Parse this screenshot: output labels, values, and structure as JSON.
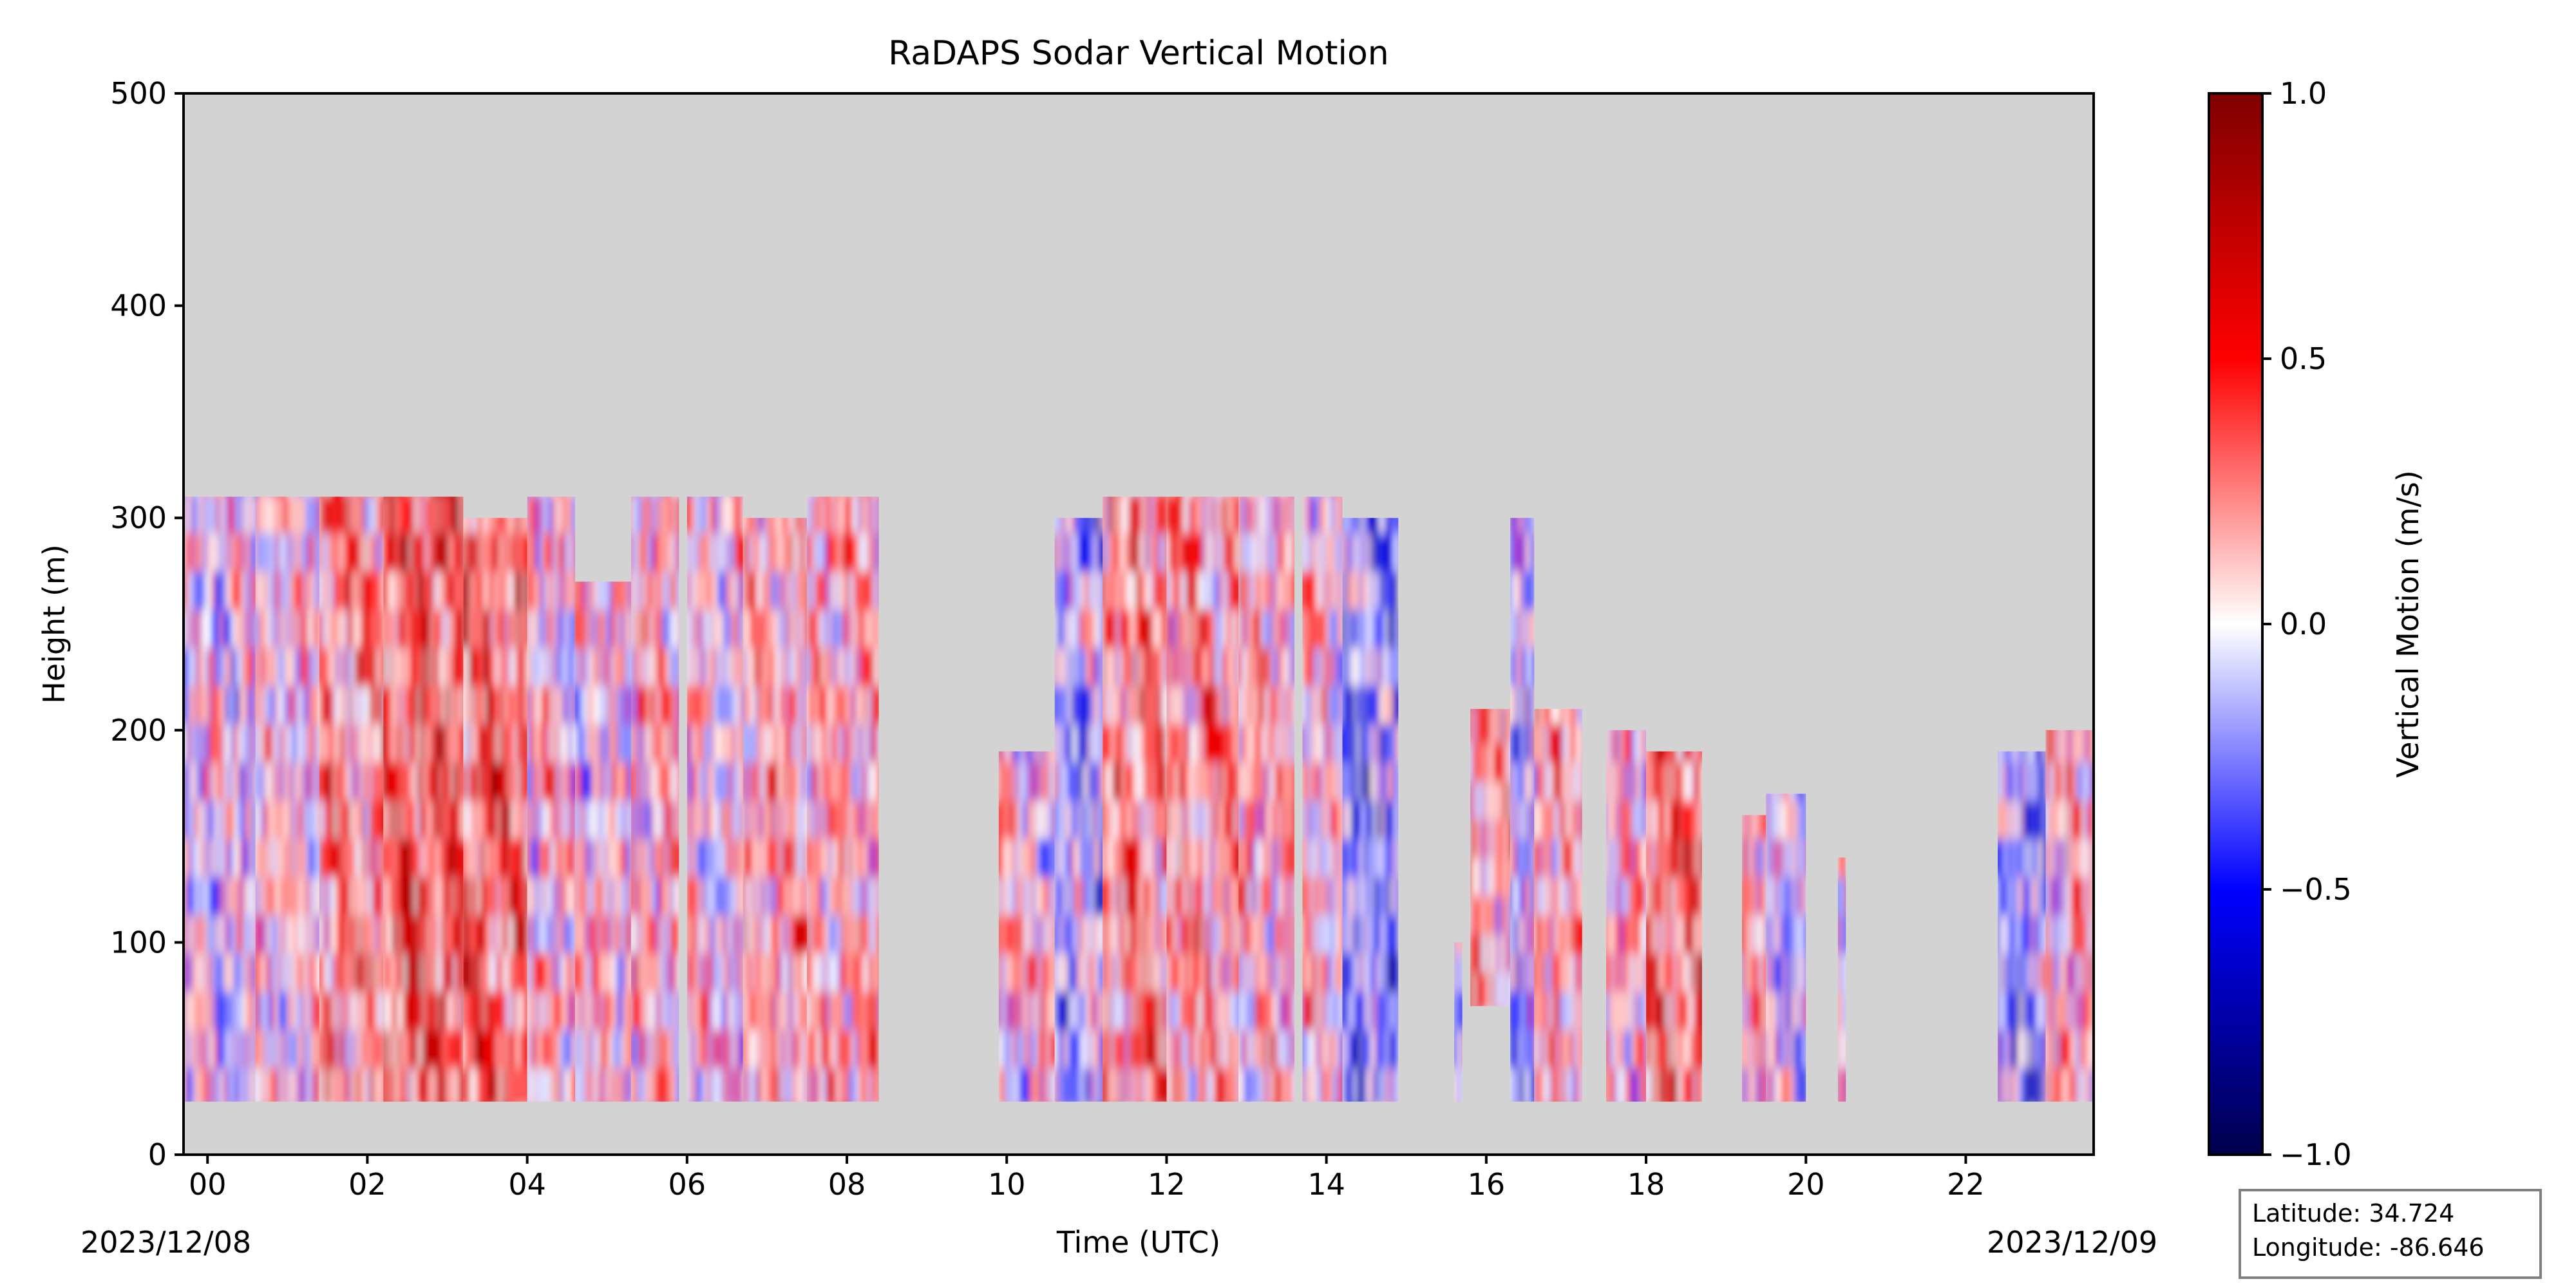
{
  "chart_data": {
    "type": "heatmap",
    "title": "RaDAPS Sodar Vertical Motion",
    "xlabel": "Time (UTC)",
    "ylabel": "Height (m)",
    "xlim": [
      -0.3,
      23.6
    ],
    "ylim": [
      0,
      500
    ],
    "x_ticks": [
      "00",
      "02",
      "04",
      "06",
      "08",
      "10",
      "12",
      "14",
      "16",
      "18",
      "20",
      "22"
    ],
    "x_tick_values": [
      0,
      2,
      4,
      6,
      8,
      10,
      12,
      14,
      16,
      18,
      20,
      22
    ],
    "y_ticks": [
      "0",
      "100",
      "200",
      "300",
      "400",
      "500"
    ],
    "y_tick_values": [
      0,
      100,
      200,
      300,
      400,
      500
    ],
    "start_date": "2023/12/08",
    "end_date": "2023/12/09",
    "background_color": "#d3d3d3",
    "colormap": "seismic",
    "colorbar": {
      "label": "Vertical Motion (m/s)",
      "range": [
        -1.0,
        1.0
      ],
      "ticks": [
        "1.0",
        "0.5",
        "0.0",
        "−0.5",
        "−1.0"
      ],
      "tick_values": [
        1.0,
        0.5,
        0.0,
        -0.5,
        -1.0
      ],
      "stops": [
        "#00004c",
        "#0000ff",
        "#ffffff",
        "#ff0000",
        "#7f0000"
      ]
    },
    "data_segments": [
      {
        "start": -0.3,
        "end": 0.6,
        "bottom": 25,
        "top": 310,
        "mean": -0.05
      },
      {
        "start": 0.6,
        "end": 1.4,
        "bottom": 25,
        "top": 310,
        "mean": 0.05
      },
      {
        "start": 1.4,
        "end": 2.2,
        "bottom": 25,
        "top": 310,
        "mean": 0.3
      },
      {
        "start": 2.2,
        "end": 3.2,
        "bottom": 25,
        "top": 310,
        "mean": 0.45
      },
      {
        "start": 3.2,
        "end": 4.0,
        "bottom": 25,
        "top": 300,
        "mean": 0.4
      },
      {
        "start": 4.0,
        "end": 4.6,
        "bottom": 25,
        "top": 310,
        "mean": 0.1
      },
      {
        "start": 4.6,
        "end": 5.3,
        "bottom": 25,
        "top": 270,
        "mean": 0.05
      },
      {
        "start": 5.3,
        "end": 5.9,
        "bottom": 25,
        "top": 310,
        "mean": 0.15
      },
      {
        "start": 6.0,
        "end": 6.7,
        "bottom": 25,
        "top": 310,
        "mean": 0.05
      },
      {
        "start": 6.7,
        "end": 7.5,
        "bottom": 25,
        "top": 300,
        "mean": 0.2
      },
      {
        "start": 7.5,
        "end": 8.4,
        "bottom": 25,
        "top": 310,
        "mean": 0.15
      },
      {
        "start": 9.9,
        "end": 10.6,
        "bottom": 25,
        "top": 190,
        "mean": 0.1
      },
      {
        "start": 10.6,
        "end": 11.2,
        "bottom": 25,
        "top": 300,
        "mean": -0.2
      },
      {
        "start": 11.2,
        "end": 12.0,
        "bottom": 25,
        "top": 310,
        "mean": 0.3
      },
      {
        "start": 12.0,
        "end": 12.9,
        "bottom": 25,
        "top": 310,
        "mean": 0.25
      },
      {
        "start": 12.9,
        "end": 13.6,
        "bottom": 25,
        "top": 310,
        "mean": 0.15
      },
      {
        "start": 13.7,
        "end": 14.2,
        "bottom": 25,
        "top": 310,
        "mean": 0.1
      },
      {
        "start": 14.2,
        "end": 14.9,
        "bottom": 25,
        "top": 300,
        "mean": -0.3
      },
      {
        "start": 15.6,
        "end": 15.7,
        "bottom": 25,
        "top": 100,
        "mean": -0.05
      },
      {
        "start": 15.8,
        "end": 16.3,
        "bottom": 70,
        "top": 210,
        "mean": 0.25
      },
      {
        "start": 16.3,
        "end": 16.6,
        "bottom": 25,
        "top": 300,
        "mean": -0.2
      },
      {
        "start": 16.6,
        "end": 17.2,
        "bottom": 25,
        "top": 210,
        "mean": 0.2
      },
      {
        "start": 17.5,
        "end": 18.0,
        "bottom": 25,
        "top": 200,
        "mean": 0.1
      },
      {
        "start": 18.0,
        "end": 18.7,
        "bottom": 25,
        "top": 190,
        "mean": 0.4
      },
      {
        "start": 19.2,
        "end": 19.5,
        "bottom": 25,
        "top": 160,
        "mean": 0.2
      },
      {
        "start": 19.5,
        "end": 20.0,
        "bottom": 25,
        "top": 170,
        "mean": -0.1
      },
      {
        "start": 20.4,
        "end": 20.5,
        "bottom": 25,
        "top": 140,
        "mean": 0.05
      },
      {
        "start": 22.4,
        "end": 23.0,
        "bottom": 25,
        "top": 190,
        "mean": -0.25
      },
      {
        "start": 23.0,
        "end": 23.6,
        "bottom": 25,
        "top": 200,
        "mean": 0.15
      }
    ],
    "grid": false
  },
  "info_box": {
    "latitude": "Latitude: 34.724",
    "longitude": "Longitude: -86.646"
  }
}
